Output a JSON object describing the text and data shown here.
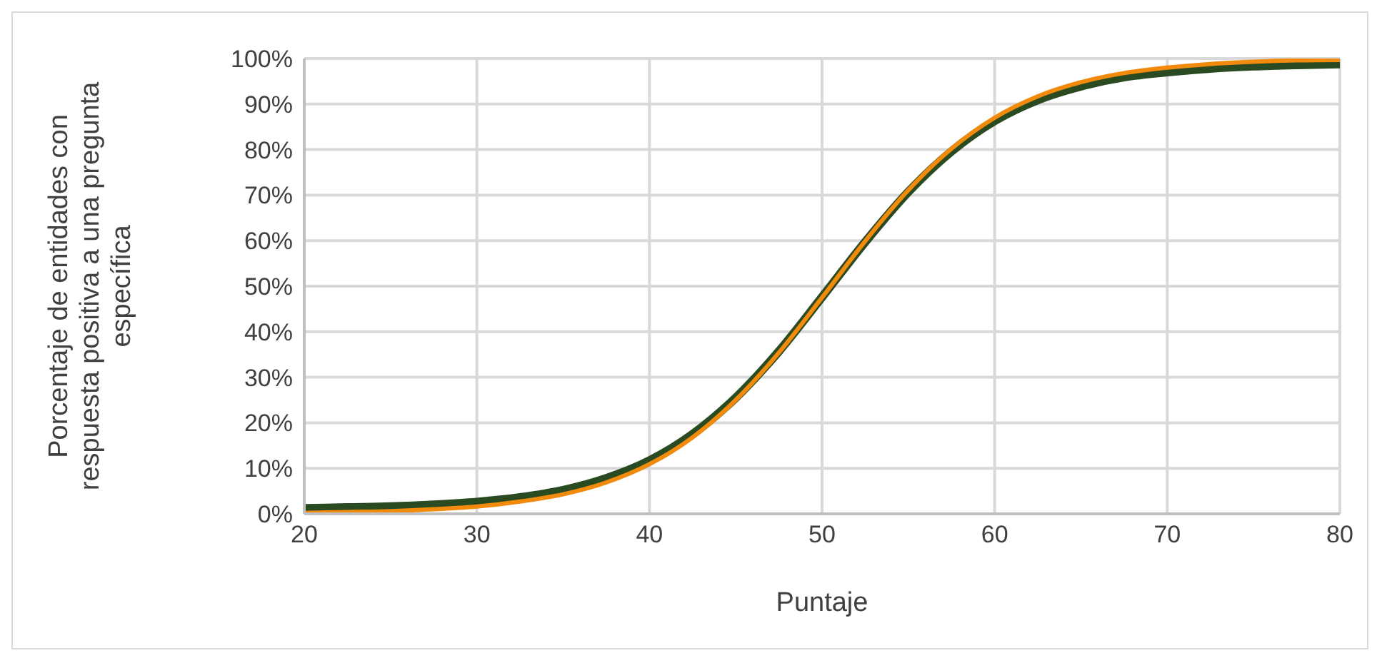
{
  "chart_data": {
    "type": "line",
    "xlabel": "Puntaje",
    "ylabel": "Porcentaje de entidades con respuesta positiva a una pregunta específica",
    "x": [
      20,
      22.5,
      25,
      27.5,
      30,
      32.5,
      35,
      37.5,
      40,
      42.5,
      45,
      47.5,
      50,
      52.5,
      55,
      57.5,
      60,
      62.5,
      65,
      67.5,
      70,
      72.5,
      75,
      77.5,
      80
    ],
    "series": [
      {
        "color": "#2a4a22",
        "values": [
          1.2,
          1.4,
          1.6,
          2.0,
          2.6,
          3.6,
          5.2,
          7.8,
          11.7,
          17.5,
          25.5,
          35.7,
          47.6,
          59.7,
          70.7,
          79.6,
          86.3,
          90.9,
          93.9,
          95.9,
          97.0,
          97.8,
          98.3,
          98.6,
          98.8
        ]
      },
      {
        "color": "#f28a0c",
        "values": [
          0.2,
          0.4,
          0.6,
          1.0,
          1.6,
          2.7,
          4.3,
          6.9,
          10.9,
          16.8,
          25.0,
          35.4,
          47.5,
          59.9,
          71.1,
          80.2,
          87.0,
          91.7,
          94.8,
          96.8,
          98.0,
          98.8,
          99.3,
          99.6,
          99.7
        ]
      }
    ],
    "xlim": [
      20,
      80
    ],
    "xticks": [
      20,
      30,
      40,
      50,
      60,
      70,
      80
    ],
    "ylim": [
      0,
      100
    ],
    "yticks": [
      {
        "value": 0,
        "label": "0%"
      },
      {
        "value": 10,
        "label": "10%"
      },
      {
        "value": 20,
        "label": "20%"
      },
      {
        "value": 30,
        "label": "30%"
      },
      {
        "value": 40,
        "label": "40%"
      },
      {
        "value": 50,
        "label": "50%"
      },
      {
        "value": 60,
        "label": "60%"
      },
      {
        "value": 70,
        "label": "70%"
      },
      {
        "value": 80,
        "label": "80%"
      },
      {
        "value": 90,
        "label": "90%"
      },
      {
        "value": 100,
        "label": "100%"
      }
    ],
    "grid": true,
    "marker": "none",
    "line_style": "solid"
  }
}
